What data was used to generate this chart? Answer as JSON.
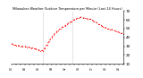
{
  "title": "Milwaukee Weather Outdoor Temperature per Minute (Last 24 Hours)",
  "background_color": "#ffffff",
  "line_color": "#ff0000",
  "ymin": 10,
  "ymax": 70,
  "yticks": [
    10,
    20,
    30,
    40,
    50,
    60,
    70
  ],
  "vlines": [
    0.28,
    0.55
  ],
  "x_values": [
    0.0,
    0.02,
    0.04,
    0.06,
    0.08,
    0.1,
    0.12,
    0.14,
    0.16,
    0.18,
    0.2,
    0.22,
    0.24,
    0.26,
    0.28,
    0.3,
    0.32,
    0.34,
    0.36,
    0.38,
    0.4,
    0.42,
    0.44,
    0.46,
    0.48,
    0.5,
    0.52,
    0.54,
    0.56,
    0.58,
    0.6,
    0.62,
    0.64,
    0.66,
    0.68,
    0.7,
    0.72,
    0.74,
    0.76,
    0.78,
    0.8,
    0.82,
    0.84,
    0.86,
    0.88,
    0.9,
    0.92,
    0.94,
    0.96,
    0.98,
    1.0
  ],
  "y_values": [
    33,
    32,
    31,
    31,
    30,
    30,
    30,
    29,
    29,
    28,
    28,
    27,
    26,
    25,
    25,
    28,
    32,
    36,
    40,
    43,
    46,
    48,
    50,
    52,
    53,
    55,
    57,
    58,
    60,
    61,
    62,
    63,
    62,
    62,
    61,
    61,
    60,
    58,
    57,
    55,
    54,
    52,
    51,
    50,
    49,
    49,
    48,
    47,
    46,
    45,
    44
  ]
}
